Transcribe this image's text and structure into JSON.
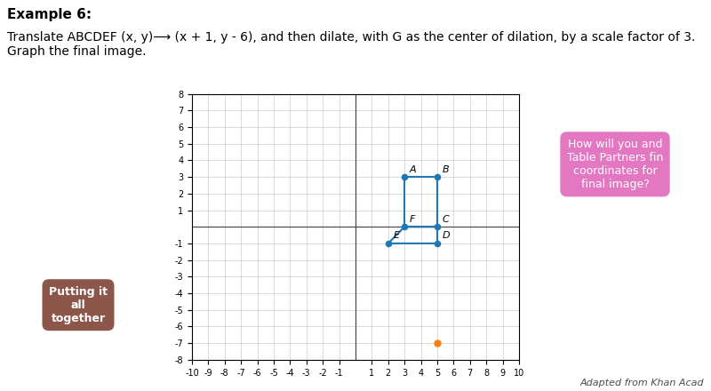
{
  "chart_data": {
    "type": "line",
    "title": "Example 6:",
    "subtitle": "Translate ABCDEF (x, y)⟶ (x + 1, y - 6), and then dilate, with G as the center of dilation, by a scale factor of 3.  Graph the final image.",
    "xlim": [
      -10,
      10
    ],
    "ylim": [
      -8,
      8
    ],
    "xticks": [
      -10,
      -9,
      -8,
      -7,
      -6,
      -5,
      -4,
      -3,
      -2,
      -1,
      1,
      2,
      3,
      4,
      5,
      6,
      7,
      8,
      9,
      10
    ],
    "yticks": [
      -8,
      -7,
      -6,
      -5,
      -4,
      -3,
      -2,
      -1,
      1,
      2,
      3,
      4,
      5,
      6,
      7,
      8
    ],
    "grid": true,
    "series": [
      {
        "type": "line",
        "x": [
          3,
          5,
          5,
          3,
          3
        ],
        "values": [
          3,
          3,
          0,
          0,
          3
        ]
      },
      {
        "type": "line",
        "x": [
          2,
          5,
          5,
          3,
          2
        ],
        "values": [
          -1,
          -1,
          0,
          0,
          -1
        ]
      },
      {
        "type": "scatter",
        "x": [
          5
        ],
        "values": [
          -7
        ]
      }
    ],
    "annotations": [
      {
        "text": "A",
        "x": 3,
        "y": 3
      },
      {
        "text": "B",
        "x": 5,
        "y": 3
      },
      {
        "text": "C",
        "x": 5,
        "y": 0
      },
      {
        "text": "D",
        "x": 5,
        "y": -1
      },
      {
        "text": "E",
        "x": 2,
        "y": -1
      },
      {
        "text": "F",
        "x": 3,
        "y": 0
      },
      {
        "text": "How will you and\nTable Partners fin\ncoordinates for\nfinal image?"
      },
      {
        "text": "Putting it\nall\ntogether"
      },
      {
        "text": "Adapted from Khan Acad"
      }
    ]
  }
}
